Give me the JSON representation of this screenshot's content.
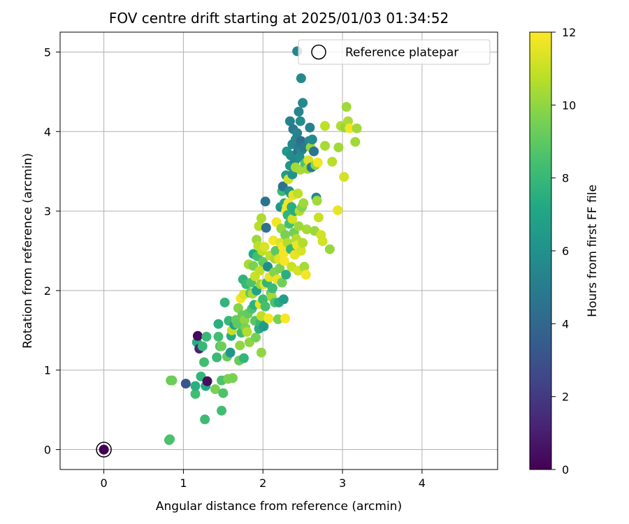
{
  "chart_data": {
    "type": "scatter",
    "title": "FOV centre drift starting at 2025/01/03 01:34:52",
    "xlabel": "Angular distance from reference (arcmin)",
    "ylabel": "Rotation from reference (arcmin)",
    "xlim": [
      -0.55,
      4.95
    ],
    "ylim": [
      -0.25,
      5.25
    ],
    "xticks": [
      0,
      1,
      2,
      3,
      4
    ],
    "yticks": [
      0,
      1,
      2,
      3,
      4,
      5
    ],
    "grid": true,
    "legend": {
      "position": "top-right",
      "entries": [
        "Reference platepar"
      ]
    },
    "colorbar": {
      "label": "Hours from first FF file",
      "range": [
        0,
        12
      ],
      "ticks": [
        0,
        2,
        4,
        6,
        8,
        10,
        12
      ],
      "colormap": "viridis"
    },
    "reference_point": {
      "x": 0,
      "y": 0,
      "c": 0
    },
    "points": [
      [
        0,
        0,
        0
      ],
      [
        0.82,
        0.12,
        8.5
      ],
      [
        0.83,
        0.13,
        8.5
      ],
      [
        0.84,
        0.87,
        9.2
      ],
      [
        0.86,
        0.87,
        9.3
      ],
      [
        1.03,
        0.83,
        3.2
      ],
      [
        1.15,
        0.7,
        8.3
      ],
      [
        1.15,
        0.8,
        7.5
      ],
      [
        1.17,
        1.35,
        7.4
      ],
      [
        1.18,
        1.43,
        0.3
      ],
      [
        1.2,
        1.27,
        1.2
      ],
      [
        1.22,
        0.92,
        7.8
      ],
      [
        1.24,
        1.3,
        8.0
      ],
      [
        1.26,
        1.1,
        8.3
      ],
      [
        1.27,
        0.38,
        8.2
      ],
      [
        1.28,
        0.8,
        7.2
      ],
      [
        1.29,
        1.42,
        8.0
      ],
      [
        1.3,
        0.86,
        0.4
      ],
      [
        1.4,
        0.76,
        9.6
      ],
      [
        1.42,
        1.16,
        8.1
      ],
      [
        1.44,
        1.58,
        7.5
      ],
      [
        1.44,
        1.42,
        8.3
      ],
      [
        1.46,
        1.3,
        8.7
      ],
      [
        1.48,
        0.49,
        8.3
      ],
      [
        1.48,
        1.3,
        9.3
      ],
      [
        1.48,
        0.87,
        8.6
      ],
      [
        1.5,
        0.71,
        8.6
      ],
      [
        1.52,
        1.85,
        7.8
      ],
      [
        1.55,
        1.17,
        9.1
      ],
      [
        1.56,
        0.89,
        9.6
      ],
      [
        1.57,
        1.62,
        8.0
      ],
      [
        1.59,
        1.22,
        6.2
      ],
      [
        1.6,
        1.43,
        7.4
      ],
      [
        1.61,
        1.5,
        10.9
      ],
      [
        1.62,
        0.9,
        9.5
      ],
      [
        1.64,
        1.57,
        6.8
      ],
      [
        1.66,
        1.63,
        9.2
      ],
      [
        1.68,
        1.58,
        9.0
      ],
      [
        1.69,
        1.78,
        9.8
      ],
      [
        1.7,
        1.12,
        9.2
      ],
      [
        1.71,
        1.31,
        10.0
      ],
      [
        1.72,
        1.9,
        11.8
      ],
      [
        1.73,
        1.47,
        8.2
      ],
      [
        1.74,
        1.69,
        9.2
      ],
      [
        1.75,
        2.14,
        7.7
      ],
      [
        1.76,
        1.15,
        7.8
      ],
      [
        1.76,
        1.95,
        11.3
      ],
      [
        1.77,
        1.63,
        10.0
      ],
      [
        1.78,
        1.53,
        9.6
      ],
      [
        1.79,
        2.08,
        8.0
      ],
      [
        1.8,
        1.48,
        10.6
      ],
      [
        1.81,
        1.71,
        9.1
      ],
      [
        1.82,
        2.33,
        10.4
      ],
      [
        1.83,
        1.35,
        10.0
      ],
      [
        1.84,
        1.97,
        9.0
      ],
      [
        1.85,
        2.1,
        8.6
      ],
      [
        1.86,
        1.77,
        8.6
      ],
      [
        1.87,
        1.96,
        10.4
      ],
      [
        1.88,
        2.46,
        7.2
      ],
      [
        1.88,
        2.31,
        9.6
      ],
      [
        1.89,
        1.82,
        7.6
      ],
      [
        1.9,
        1.62,
        8.8
      ],
      [
        1.9,
        2.18,
        11.0
      ],
      [
        1.91,
        1.41,
        9.5
      ],
      [
        1.92,
        2.0,
        7.0
      ],
      [
        1.92,
        2.64,
        10.2
      ],
      [
        1.93,
        2.43,
        8.4
      ],
      [
        1.94,
        2.56,
        10.8
      ],
      [
        1.95,
        1.52,
        7.5
      ],
      [
        1.95,
        2.81,
        10.7
      ],
      [
        1.96,
        1.83,
        11.5
      ],
      [
        1.96,
        2.25,
        10.9
      ],
      [
        1.97,
        1.6,
        8.0
      ],
      [
        1.97,
        2.08,
        10.2
      ],
      [
        1.98,
        1.22,
        10.0
      ],
      [
        1.98,
        1.68,
        10.8
      ],
      [
        1.98,
        2.91,
        10.5
      ],
      [
        1.99,
        2.5,
        10.8
      ],
      [
        2.0,
        2.36,
        9.1
      ],
      [
        2.0,
        1.89,
        8.2
      ],
      [
        2.01,
        1.55,
        6.5
      ],
      [
        2.02,
        2.55,
        11.3
      ],
      [
        2.02,
        2.08,
        11.5
      ],
      [
        2.03,
        3.12,
        4.6
      ],
      [
        2.03,
        1.8,
        8.4
      ],
      [
        2.04,
        2.79,
        4.4
      ],
      [
        2.05,
        2.1,
        7.8
      ],
      [
        2.06,
        2.3,
        5.8
      ],
      [
        2.07,
        1.65,
        11.8
      ],
      [
        2.08,
        2.17,
        11.5
      ],
      [
        2.09,
        2.44,
        10.9
      ],
      [
        2.1,
        1.97,
        9.4
      ],
      [
        2.11,
        1.92,
        10.3
      ],
      [
        2.12,
        2.03,
        8.1
      ],
      [
        2.13,
        2.63,
        11.8
      ],
      [
        2.14,
        2.23,
        9.8
      ],
      [
        2.15,
        2.4,
        10.4
      ],
      [
        2.15,
        1.85,
        8.5
      ],
      [
        2.16,
        2.5,
        8.9
      ],
      [
        2.17,
        2.86,
        11.8
      ],
      [
        2.18,
        2.14,
        11.6
      ],
      [
        2.19,
        1.64,
        9.6
      ],
      [
        2.2,
        2.4,
        11.4
      ],
      [
        2.2,
        1.85,
        7.4
      ],
      [
        2.21,
        2.28,
        9.6
      ],
      [
        2.22,
        3.05,
        6.2
      ],
      [
        2.22,
        2.6,
        11.4
      ],
      [
        2.23,
        2.78,
        10.1
      ],
      [
        2.24,
        3.25,
        8.1
      ],
      [
        2.24,
        2.1,
        9.4
      ],
      [
        2.25,
        3.31,
        4.5
      ],
      [
        2.25,
        2.55,
        11.9
      ],
      [
        2.26,
        2.47,
        11.8
      ],
      [
        2.26,
        1.89,
        6.7
      ],
      [
        2.27,
        3.1,
        7.2
      ],
      [
        2.27,
        2.37,
        11.9
      ],
      [
        2.28,
        2.7,
        9.6
      ],
      [
        2.28,
        1.65,
        11.9
      ],
      [
        2.29,
        3.45,
        6.6
      ],
      [
        2.29,
        3.0,
        11.9
      ],
      [
        2.29,
        2.2,
        7.5
      ],
      [
        2.3,
        3.75,
        6.4
      ],
      [
        2.3,
        3.05,
        11.8
      ],
      [
        2.31,
        2.95,
        7.8
      ],
      [
        2.31,
        2.6,
        10.6
      ],
      [
        2.32,
        3.4,
        11.2
      ],
      [
        2.32,
        3.1,
        11.8
      ],
      [
        2.33,
        3.25,
        6.0
      ],
      [
        2.33,
        2.84,
        8.4
      ],
      [
        2.34,
        4.13,
        5.3
      ],
      [
        2.34,
        3.57,
        6.3
      ],
      [
        2.35,
        3.7,
        5.8
      ],
      [
        2.35,
        3.22,
        6.4
      ],
      [
        2.35,
        2.52,
        8.0
      ],
      [
        2.36,
        3.05,
        7.5
      ],
      [
        2.36,
        2.3,
        11.0
      ],
      [
        2.37,
        3.84,
        5.6
      ],
      [
        2.37,
        3.46,
        6.0
      ],
      [
        2.37,
        2.9,
        11.2
      ],
      [
        2.38,
        4.03,
        4.9
      ],
      [
        2.38,
        3.2,
        11.5
      ],
      [
        2.39,
        2.73,
        9.4
      ],
      [
        2.4,
        3.63,
        5.4
      ],
      [
        2.4,
        3.0,
        7.4
      ],
      [
        2.4,
        2.45,
        11.6
      ],
      [
        2.41,
        3.9,
        5.4
      ],
      [
        2.41,
        3.55,
        10.3
      ],
      [
        2.42,
        2.65,
        10.6
      ],
      [
        2.43,
        5.01,
        5.4
      ],
      [
        2.43,
        3.98,
        5.3
      ],
      [
        2.43,
        2.57,
        11.7
      ],
      [
        2.44,
        3.75,
        4.5
      ],
      [
        2.44,
        3.22,
        10.8
      ],
      [
        2.44,
        2.25,
        11.2
      ],
      [
        2.45,
        4.25,
        5.4
      ],
      [
        2.45,
        3.8,
        5.0
      ],
      [
        2.45,
        2.81,
        10.2
      ],
      [
        2.46,
        3.68,
        5.9
      ],
      [
        2.46,
        3.0,
        10.6
      ],
      [
        2.47,
        4.13,
        5.8
      ],
      [
        2.47,
        3.52,
        10.4
      ],
      [
        2.48,
        4.67,
        5.6
      ],
      [
        2.48,
        3.88,
        4.2
      ],
      [
        2.48,
        2.5,
        11.3
      ],
      [
        2.49,
        3.05,
        9.7
      ],
      [
        2.49,
        3.77,
        5.6
      ],
      [
        2.5,
        4.36,
        5.6
      ],
      [
        2.5,
        2.6,
        10.6
      ],
      [
        2.51,
        3.8,
        4.9
      ],
      [
        2.51,
        3.1,
        10.3
      ],
      [
        2.52,
        2.3,
        10.4
      ],
      [
        2.53,
        3.6,
        8.6
      ],
      [
        2.54,
        2.2,
        11.8
      ],
      [
        2.55,
        2.77,
        10.4
      ],
      [
        2.56,
        3.53,
        10.3
      ],
      [
        2.57,
        3.64,
        11.3
      ],
      [
        2.58,
        3.88,
        5.5
      ],
      [
        2.59,
        4.05,
        5.2
      ],
      [
        2.6,
        3.8,
        10.1
      ],
      [
        2.61,
        3.55,
        5.0
      ],
      [
        2.62,
        3.9,
        5.7
      ],
      [
        2.64,
        3.75,
        4.7
      ],
      [
        2.65,
        2.75,
        10.2
      ],
      [
        2.66,
        3.58,
        10.0
      ],
      [
        2.67,
        3.17,
        5.6
      ],
      [
        2.68,
        3.13,
        10.3
      ],
      [
        2.69,
        3.61,
        11.8
      ],
      [
        2.7,
        2.92,
        11.0
      ],
      [
        2.73,
        2.7,
        11.2
      ],
      [
        2.75,
        2.62,
        11.2
      ],
      [
        2.78,
        4.07,
        10.8
      ],
      [
        2.78,
        3.82,
        10.4
      ],
      [
        2.84,
        2.52,
        10.1
      ],
      [
        2.87,
        3.62,
        10.7
      ],
      [
        2.94,
        3.01,
        11.6
      ],
      [
        2.95,
        3.8,
        10.3
      ],
      [
        2.98,
        4.07,
        10.6
      ],
      [
        3.02,
        3.43,
        11.2
      ],
      [
        3.03,
        4.05,
        10.1
      ],
      [
        3.05,
        4.31,
        10.3
      ],
      [
        3.07,
        4.13,
        10.5
      ],
      [
        3.09,
        4.04,
        11.8
      ],
      [
        3.16,
        3.87,
        10.3
      ],
      [
        3.18,
        4.04,
        10.3
      ]
    ]
  }
}
